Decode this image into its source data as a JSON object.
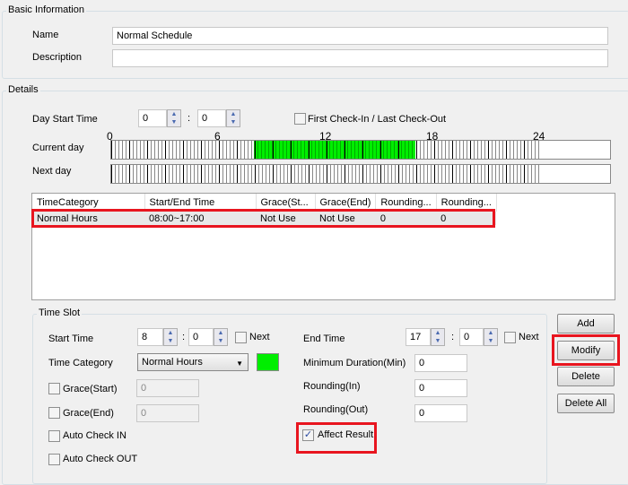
{
  "basic": {
    "title": "Basic Information",
    "name_label": "Name",
    "name_value": "Normal Schedule",
    "description_label": "Description",
    "description_value": ""
  },
  "details": {
    "title": "Details",
    "day_start_label": "Day Start Time",
    "day_start_hour": "0",
    "day_start_min": "0",
    "colon": ":",
    "first_last_label": "First Check-In / Last Check-Out",
    "first_last_checked": false,
    "timeline": {
      "ticks": [
        "0",
        "6",
        "12",
        "18",
        "24"
      ],
      "current_day_label": "Current day",
      "next_day_label": "Next day",
      "highlight_start_hour": 8,
      "highlight_end_hour": 17,
      "highlight_color": "#00ee00"
    }
  },
  "table": {
    "columns": [
      "TimeCategory",
      "Start/End Time",
      "Grace(St...",
      "Grace(End)",
      "Rounding...",
      "Rounding..."
    ],
    "rows": [
      [
        "Normal Hours",
        "08:00~17:00",
        "Not Use",
        "Not Use",
        "0",
        "0"
      ]
    ]
  },
  "timeslot": {
    "title": "Time Slot",
    "start_label": "Start Time",
    "start_hour": "8",
    "start_min": "0",
    "next_label": "Next",
    "end_label": "End Time",
    "end_hour": "17",
    "end_min": "0",
    "category_label": "Time Category",
    "category_value": "Normal Hours",
    "category_color": "#00ee00",
    "grace_start_label": "Grace(Start)",
    "grace_start_value": "0",
    "grace_end_label": "Grace(End)",
    "grace_end_value": "0",
    "auto_in_label": "Auto Check IN",
    "auto_out_label": "Auto Check OUT",
    "min_duration_label": "Minimum Duration(Min)",
    "min_duration_value": "0",
    "rounding_in_label": "Rounding(In)",
    "rounding_in_value": "0",
    "rounding_out_label": "Rounding(Out)",
    "rounding_out_value": "0",
    "affect_label": "Affect Result",
    "affect_checked": true,
    "check": "✓"
  },
  "buttons": {
    "add": "Add",
    "modify": "Modify",
    "delete": "Delete",
    "delete_all": "Delete All"
  },
  "icons": {
    "up": "▲",
    "down": "▼",
    "dropdown": "▼"
  }
}
